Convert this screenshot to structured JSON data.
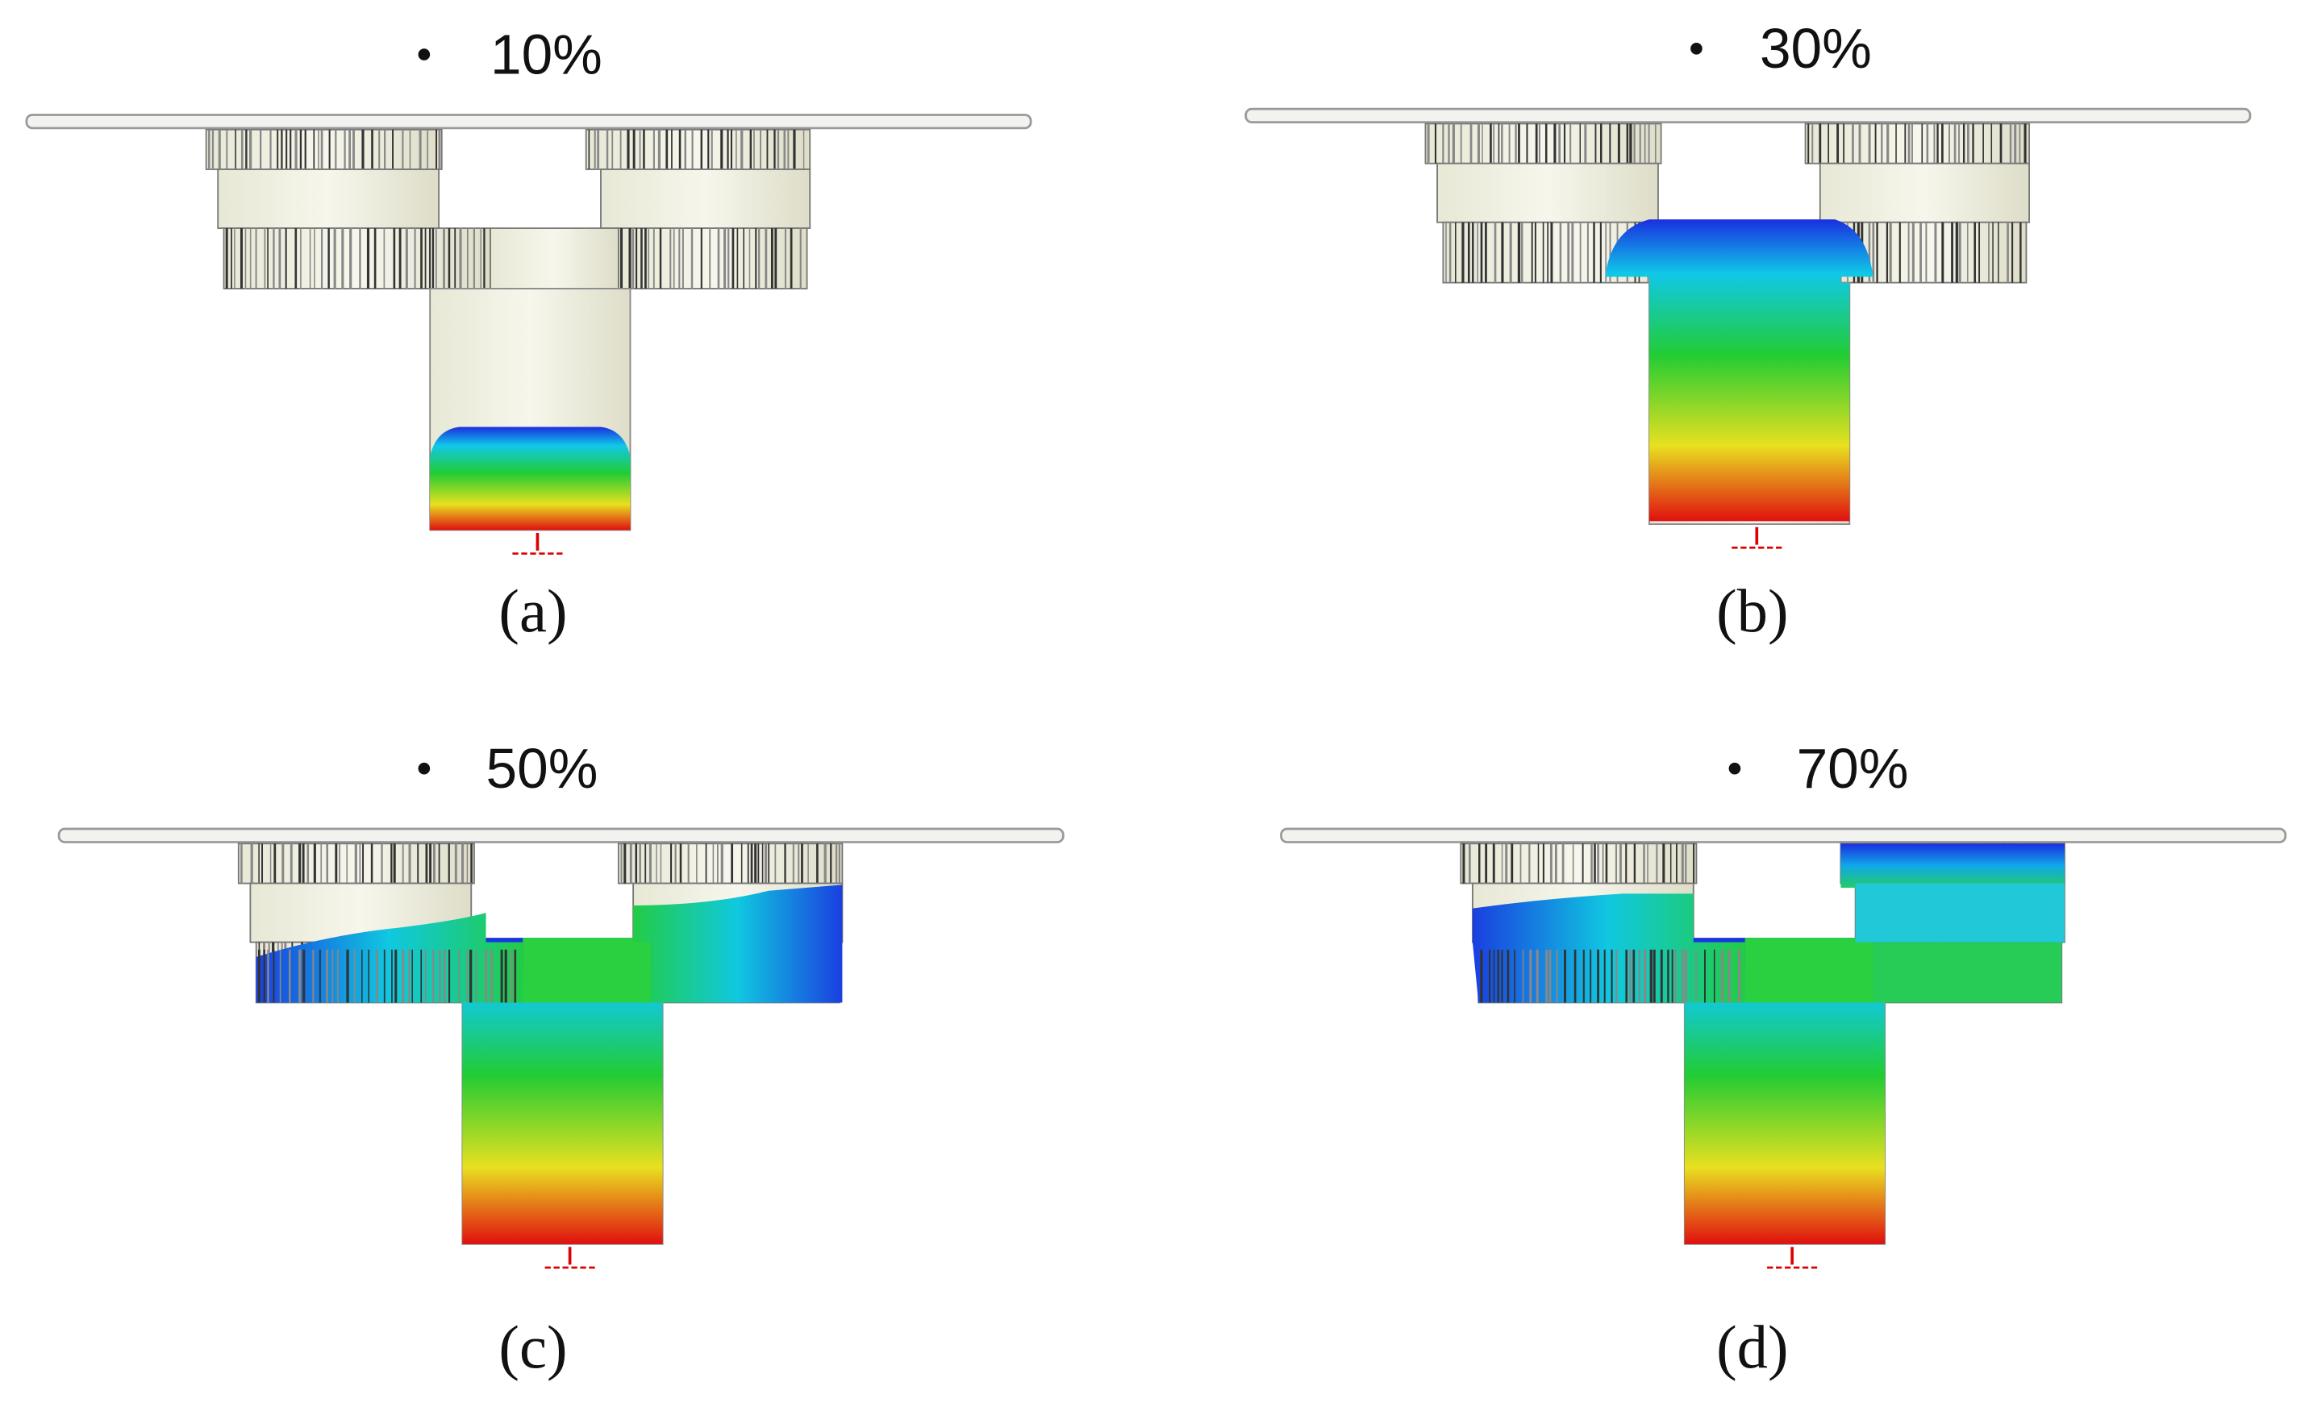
{
  "panels": [
    {
      "heading": "10%",
      "caption": "(a)"
    },
    {
      "heading": "30%",
      "caption": "(b)"
    },
    {
      "heading": "50%",
      "caption": "(c)"
    },
    {
      "heading": "70%",
      "caption": "(d)"
    }
  ]
}
